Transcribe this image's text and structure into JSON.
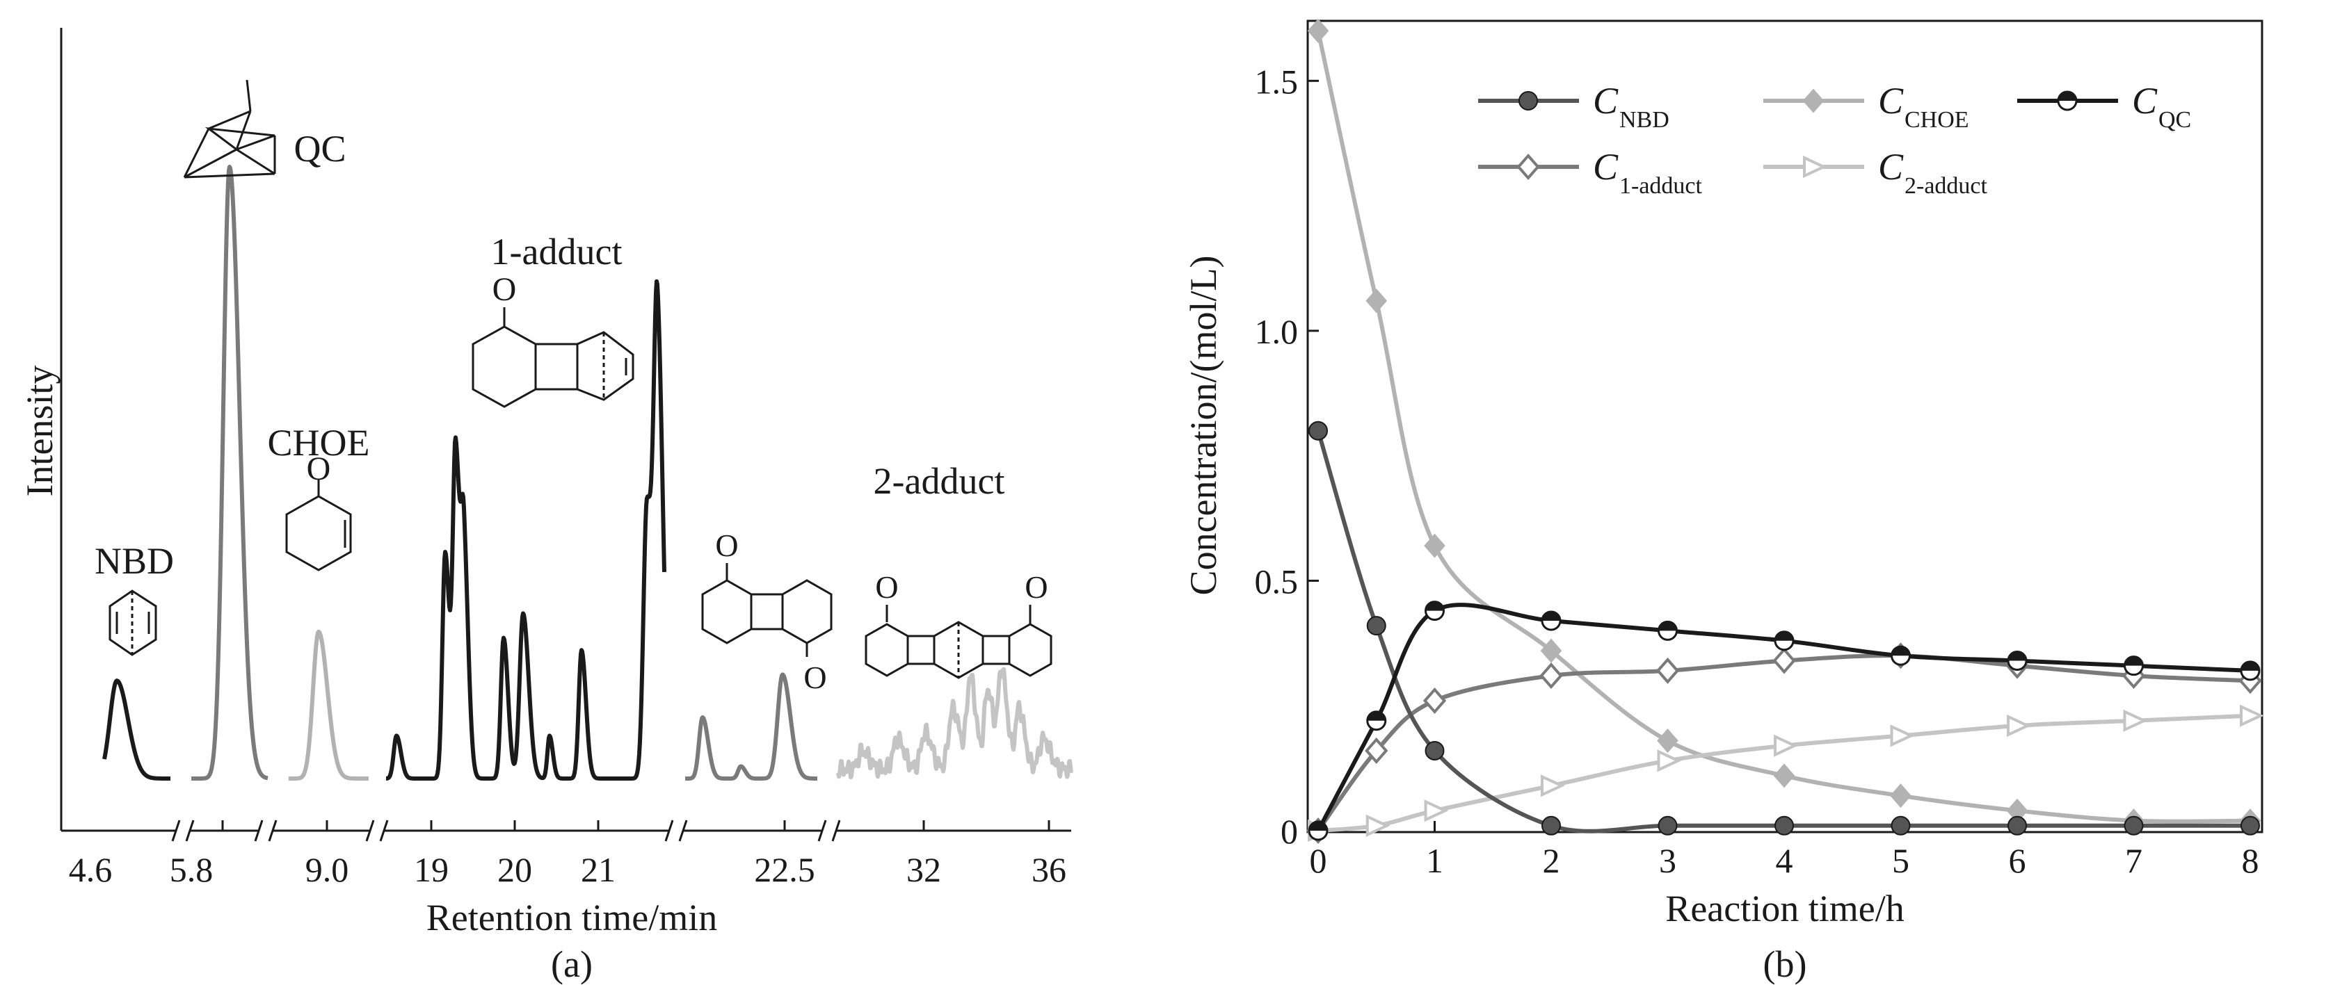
{
  "colors": {
    "black": "#1a1a1a",
    "dark_gray": "#555555",
    "mid_gray": "#7a7a7a",
    "light_gray": "#b2b2b2",
    "lighter_gray": "#c4c4c4"
  },
  "chart_data": [
    {
      "panel": "a",
      "type": "line",
      "subtitle": "(a)",
      "xlabel": "Retention time/min",
      "ylabel": "Intensity",
      "x_ticks": [
        "4.6",
        "5.8",
        "9.0",
        "19",
        "20",
        "21",
        "22.5",
        "32",
        "36"
      ],
      "axis_breaks": 6,
      "grid": false,
      "annotations": {
        "nbd": "NBD",
        "qc": "QC",
        "choe": "CHOE",
        "adduct1": "1-adduct",
        "adduct2": "2-adduct",
        "keto": "O"
      },
      "peaks": [
        {
          "name": "NBD",
          "x": 4.8,
          "relative_intensity": 0.16
        },
        {
          "name": "QC",
          "x": 6.1,
          "relative_intensity": 1.0
        },
        {
          "name": "CHOE",
          "x": 9.0,
          "relative_intensity": 0.24
        },
        {
          "name": "1-adduct",
          "x": 21.9,
          "relative_intensity": 0.73
        },
        {
          "name": "2-adduct",
          "x": 22.6,
          "relative_intensity": 0.17
        }
      ]
    },
    {
      "panel": "b",
      "type": "line",
      "subtitle": "(b)",
      "xlabel": "Reaction time/h",
      "ylabel": "Concentration/(mol/L)",
      "xlim": [
        0,
        8
      ],
      "ylim": [
        0,
        1.62
      ],
      "x_ticks": [
        "0",
        "1",
        "2",
        "3",
        "4",
        "5",
        "6",
        "7",
        "8"
      ],
      "y_ticks": [
        "0",
        "0.5",
        "1.0",
        "1.5"
      ],
      "grid": false,
      "legend_position": "top",
      "series": [
        {
          "name": "C_NBD",
          "label_main": "C",
          "label_sub": "NBD",
          "color": "#555555",
          "marker": "sphere",
          "x": [
            0,
            0.5,
            1,
            2,
            3,
            4,
            5,
            6,
            7,
            8
          ],
          "y": [
            0.8,
            0.41,
            0.16,
            0.01,
            0.01,
            0.01,
            0.01,
            0.01,
            0.01,
            0.01
          ]
        },
        {
          "name": "C_CHOE",
          "label_main": "C",
          "label_sub": "CHOE",
          "color": "#b2b2b2",
          "marker": "diamond",
          "x": [
            0,
            0.5,
            1,
            2,
            3,
            4,
            5,
            6,
            7,
            8
          ],
          "y": [
            1.6,
            1.06,
            0.57,
            0.36,
            0.18,
            0.11,
            0.07,
            0.04,
            0.02,
            0.02
          ]
        },
        {
          "name": "C_QC",
          "label_main": "C",
          "label_sub": "QC",
          "color": "#1a1a1a",
          "marker": "half-circle",
          "x": [
            0,
            0.5,
            1,
            2,
            3,
            4,
            5,
            6,
            7,
            8
          ],
          "y": [
            0.0,
            0.22,
            0.44,
            0.42,
            0.4,
            0.38,
            0.35,
            0.34,
            0.33,
            0.32
          ]
        },
        {
          "name": "C_1-adduct",
          "label_main": "C",
          "label_sub": "1-adduct",
          "color": "#7a7a7a",
          "marker": "diamond-outline",
          "x": [
            0,
            0.5,
            1,
            2,
            3,
            4,
            5,
            6,
            7,
            8
          ],
          "y": [
            0.0,
            0.16,
            0.26,
            0.31,
            0.32,
            0.34,
            0.35,
            0.33,
            0.31,
            0.3
          ]
        },
        {
          "name": "C_2-adduct",
          "label_main": "C",
          "label_sub": "2-adduct",
          "color": "#c4c4c4",
          "marker": "triangle-right",
          "x": [
            0,
            0.5,
            1,
            2,
            3,
            4,
            5,
            6,
            7,
            8
          ],
          "y": [
            0.0,
            0.01,
            0.04,
            0.09,
            0.14,
            0.17,
            0.19,
            0.21,
            0.22,
            0.23
          ]
        }
      ]
    }
  ]
}
